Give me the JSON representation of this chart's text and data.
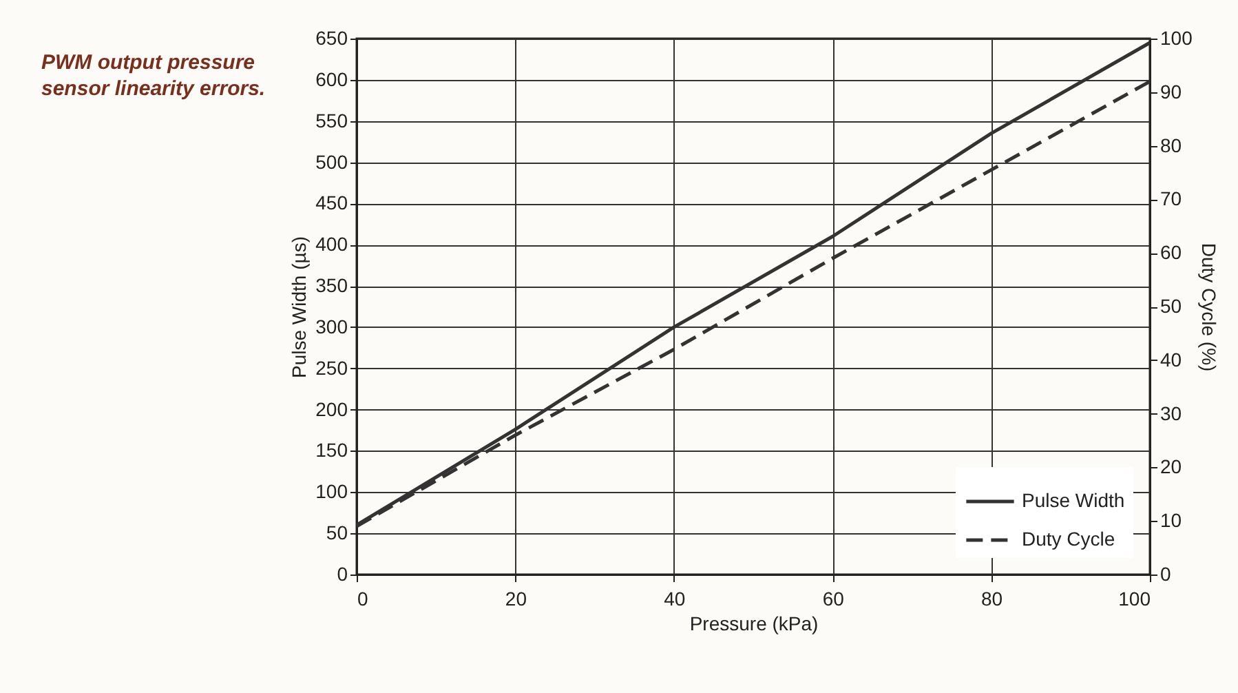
{
  "chart_data": {
    "type": "line",
    "title": "PWM output pressure sensor linearity errors.",
    "xlabel": "Pressure (kPa)",
    "ylabel": "Pulse Width (µs)",
    "y2label": "Duty Cycle (%)",
    "x": [
      0,
      20,
      40,
      60,
      80,
      100
    ],
    "series": [
      {
        "name": "Pulse Width",
        "color": "#333333",
        "line_style": "solid",
        "values": [
          60,
          176,
          300,
          410,
          535,
          645
        ]
      },
      {
        "name": "Duty Cycle",
        "color": "#333333",
        "line_style": "dashed",
        "axis": "y2",
        "values": [
          9,
          26,
          42,
          59,
          75.5,
          92
        ]
      }
    ],
    "xlim": [
      0,
      100
    ],
    "xticks": [
      0,
      20,
      40,
      60,
      80,
      100
    ],
    "ylim": [
      0,
      650
    ],
    "yticks": [
      0,
      50,
      100,
      150,
      200,
      250,
      300,
      350,
      400,
      450,
      500,
      550,
      600,
      650
    ],
    "y2lim": [
      0,
      100
    ],
    "y2ticks": [
      0,
      10,
      20,
      30,
      40,
      50,
      60,
      70,
      80,
      90,
      100
    ],
    "grid": true,
    "legend": "bottom right",
    "marker": "none"
  }
}
